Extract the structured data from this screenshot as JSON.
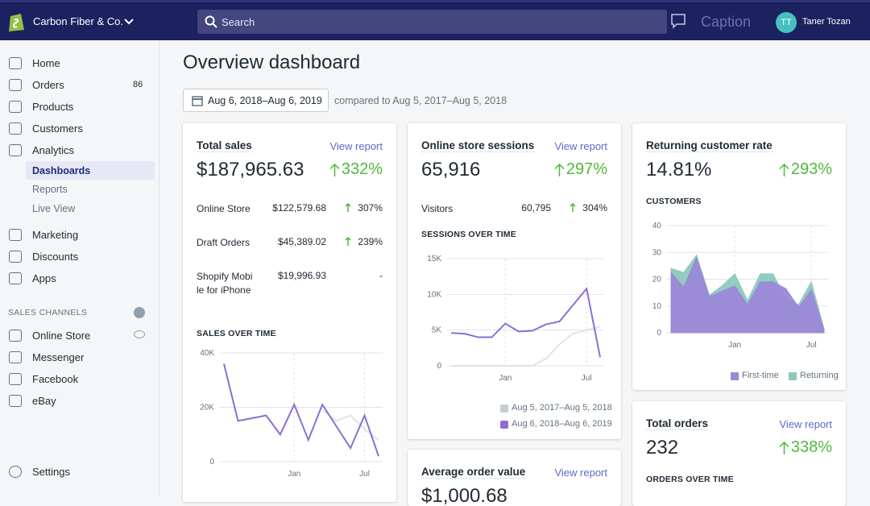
{
  "topbar": {
    "store": "Carbon Fiber & Co.",
    "search": "Search",
    "caption": "Caption",
    "avatar": "TT",
    "user": "Taner Tozan"
  },
  "sidebar": {
    "items": [
      {
        "label": "Home"
      },
      {
        "label": "Orders",
        "badge": 86
      },
      {
        "label": "Products"
      },
      {
        "label": "Customers"
      },
      {
        "label": "Analytics"
      },
      {
        "label": "Dashboards"
      },
      {
        "label": "Reports"
      },
      {
        "label": "Live View"
      },
      {
        "label": "Marketing"
      },
      {
        "label": "Discounts"
      },
      {
        "label": "Apps"
      }
    ],
    "section": "SALES CHANNELS",
    "channels": [
      "Online Store",
      "Messenger",
      "Facebook",
      "eBay"
    ],
    "settings": "Settings"
  },
  "header": {
    "title": "Overview dashboard",
    "date_range": "Aug 6, 2018–Aug 6, 2019",
    "compare": "compared to Aug 5, 2017–Aug 5, 2018"
  },
  "cards": [
    {
      "title": "Total sales",
      "link": "View report",
      "value": "$187,965.63",
      "change": "332%",
      "rows": [
        [
          "Online Store",
          "$122,579.68",
          "307%"
        ],
        [
          "Draft Orders",
          "$45,389.02",
          "239%"
        ],
        [
          "Shopify Mobile for iPhone",
          "$19,996.93",
          "-"
        ]
      ],
      "chart": {
        "type": "line",
        "title": "SALES OVER TIME",
        "categories": [
          null,
          null,
          null,
          null,
          null,
          "Jan",
          null,
          null,
          null,
          null,
          "Jul",
          null
        ],
        "ylim": [
          0,
          40000
        ],
        "yticks": [
          {
            "value": 0,
            "label": "0"
          },
          {
            "value": 20000,
            "label": "20K"
          },
          {
            "value": 40000,
            "label": "40K"
          }
        ],
        "grid": true,
        "series": [
          {
            "color": "#dfe3e8",
            "values": [
              null,
              null,
              null,
              null,
              null,
              null,
              null,
              19000,
              15000,
              17000,
              12000,
              8000
            ]
          },
          {
            "color": "#8c6fd0",
            "values": [
              36000,
              15000,
              16000,
              17000,
              10000,
              21000,
              8000,
              21000,
              13000,
              5000,
              17000,
              2000
            ]
          }
        ]
      }
    },
    {
      "title": "Online store sessions",
      "link": "View report",
      "value": "65,916",
      "change": "297%",
      "rows": [
        [
          "Visitors",
          "60,795",
          "304%"
        ]
      ],
      "chart": {
        "type": "line",
        "title": "SESSIONS OVER TIME",
        "categories": [
          null,
          null,
          null,
          null,
          "Jan",
          null,
          null,
          null,
          null,
          null,
          "Jul",
          null
        ],
        "ylim": [
          0,
          15000
        ],
        "yticks": [
          {
            "value": 0,
            "label": "0"
          },
          {
            "value": 5000,
            "label": "5K"
          },
          {
            "value": 10000,
            "label": "10K"
          },
          {
            "value": 15000,
            "label": "15K"
          }
        ],
        "grid": true,
        "series": [
          {
            "name": "Aug 5, 2017–Aug 5, 2018",
            "color": "#dfe3e8",
            "values": [
              0,
              0,
              0,
              0,
              0,
              0,
              0,
              1000,
              3000,
              4500,
              5000,
              5500
            ]
          },
          {
            "name": "Aug 6, 2018–Aug 6, 2019",
            "color": "#8c6fd0",
            "values": [
              4600,
              4500,
              4000,
              4000,
              5900,
              4800,
              4900,
              5800,
              6200,
              8500,
              10800,
              1200
            ]
          }
        ]
      }
    },
    {
      "title": "Returning customer rate",
      "value": "14.81%",
      "change": "293%",
      "chart": {
        "type": "area",
        "title": "CUSTOMERS",
        "categories": [
          null,
          null,
          null,
          null,
          null,
          "Jan",
          null,
          null,
          null,
          null,
          null,
          "Jul",
          null
        ],
        "ylim": [
          0,
          40
        ],
        "yticks": [
          0,
          10,
          20,
          30,
          40
        ],
        "grid": true,
        "series": [
          {
            "name": "Returning",
            "color": "#8cc8bd",
            "values": [
              24,
              22.5,
              29,
              14,
              17.5,
              22,
              12,
              22,
              22,
              12.5,
              10.5,
              19,
              1.5
            ]
          },
          {
            "name": "First-time",
            "color": "#9c88d8",
            "values": [
              22.5,
              17,
              28,
              13.5,
              15.5,
              17.5,
              10.5,
              19,
              19,
              16.5,
              9.5,
              16,
              1
            ]
          }
        ],
        "legend_order": [
          1,
          0
        ]
      }
    },
    {
      "title": "Total orders",
      "link": "View report",
      "value": "232",
      "change": "338%",
      "chart": {
        "title": "ORDERS OVER TIME"
      }
    },
    {
      "title": "Average order value",
      "link": "View report",
      "value": "$1,000.68"
    }
  ]
}
